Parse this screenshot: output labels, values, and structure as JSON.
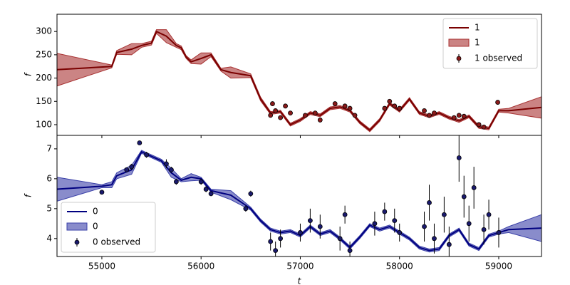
{
  "chart_data": [
    {
      "type": "line",
      "ylabel": "f",
      "legend": "upper right",
      "xlim": [
        54548,
        59431
      ],
      "xticks": [
        55000,
        56000,
        57000,
        58000,
        59000
      ],
      "show_xtick_labels": false,
      "ylim": [
        77,
        337
      ],
      "yticks": [
        100,
        150,
        200,
        250,
        300
      ],
      "line": {
        "name": "1",
        "color": "#7a0000",
        "x": [
          54548,
          55100,
          55150,
          55300,
          55400,
          55500,
          55550,
          55650,
          55750,
          55800,
          55850,
          55900,
          56000,
          56100,
          56200,
          56300,
          56500,
          56600,
          56700,
          56800,
          56900,
          57000,
          57100,
          57200,
          57300,
          57400,
          57500,
          57600,
          57700,
          57800,
          57900,
          58000,
          58100,
          58200,
          58300,
          58400,
          58500,
          58600,
          58700,
          58800,
          58900,
          59000,
          59100,
          59431
        ],
        "values": [
          218,
          225,
          255,
          262,
          270,
          275,
          300,
          290,
          270,
          265,
          245,
          235,
          242,
          250,
          218,
          212,
          205,
          155,
          125,
          128,
          100,
          110,
          125,
          120,
          135,
          138,
          130,
          105,
          88,
          110,
          145,
          130,
          155,
          125,
          118,
          125,
          115,
          108,
          118,
          95,
          92,
          130,
          130,
          137
        ]
      },
      "band": {
        "name": "1",
        "color": "#a83232",
        "lower": [
          183,
          222,
          251,
          250,
          266,
          271,
          296,
          276,
          266,
          261,
          242,
          231,
          230,
          246,
          215,
          200,
          201,
          151,
          122,
          125,
          97,
          107,
          122,
          117,
          132,
          135,
          127,
          102,
          85,
          107,
          142,
          127,
          152,
          122,
          115,
          122,
          112,
          105,
          115,
          92,
          89,
          127,
          125,
          114
        ],
        "upper": [
          253,
          228,
          259,
          274,
          274,
          279,
          304,
          304,
          274,
          269,
          248,
          239,
          254,
          254,
          221,
          224,
          209,
          159,
          128,
          131,
          103,
          113,
          128,
          123,
          138,
          141,
          133,
          108,
          91,
          113,
          148,
          133,
          158,
          128,
          121,
          128,
          118,
          111,
          121,
          98,
          95,
          133,
          135,
          160
        ]
      },
      "observed": {
        "name": "1 observed",
        "color": "#8b1a1a",
        "x": [
          56700,
          56720,
          56750,
          56800,
          56850,
          56900,
          57050,
          57150,
          57200,
          57350,
          57450,
          57500,
          57550,
          57850,
          57900,
          57950,
          58000,
          58250,
          58300,
          58350,
          58550,
          58600,
          58650,
          58800,
          58850,
          58990
        ],
        "values": [
          120,
          145,
          130,
          115,
          140,
          125,
          120,
          125,
          110,
          145,
          140,
          135,
          120,
          135,
          150,
          140,
          135,
          130,
          120,
          125,
          115,
          120,
          118,
          100,
          95,
          148
        ],
        "errors": [
          4,
          4,
          4,
          4,
          4,
          4,
          4,
          4,
          4,
          4,
          4,
          4,
          4,
          4,
          4,
          4,
          4,
          4,
          4,
          4,
          4,
          4,
          4,
          4,
          4,
          4
        ]
      }
    },
    {
      "type": "line",
      "ylabel": "f",
      "xlabel": "t",
      "legend": "lower left",
      "xlim": [
        54548,
        59431
      ],
      "xticks": [
        55000,
        56000,
        57000,
        58000,
        59000
      ],
      "show_xtick_labels": true,
      "ylim": [
        3.4,
        7.45
      ],
      "yticks": [
        4,
        5,
        6,
        7
      ],
      "line": {
        "name": "0",
        "color": "#000080",
        "x": [
          54548,
          55000,
          55100,
          55150,
          55300,
          55400,
          55600,
          55700,
          55800,
          55900,
          56000,
          56100,
          56300,
          56500,
          56600,
          56700,
          56800,
          56900,
          57000,
          57100,
          57200,
          57300,
          57400,
          57500,
          57600,
          57700,
          57800,
          57900,
          58000,
          58100,
          58200,
          58300,
          58400,
          58500,
          58600,
          58700,
          58800,
          58900,
          59000,
          59100,
          59431
        ],
        "values": [
          5.65,
          5.75,
          5.8,
          6.1,
          6.3,
          6.9,
          6.6,
          6.2,
          5.95,
          6.05,
          6.0,
          5.6,
          5.45,
          5.0,
          4.6,
          4.3,
          4.2,
          4.25,
          4.1,
          4.4,
          4.15,
          4.25,
          4.0,
          3.7,
          4.05,
          4.45,
          4.3,
          4.4,
          4.2,
          4.0,
          3.7,
          3.6,
          3.65,
          4.1,
          4.3,
          3.8,
          3.65,
          4.1,
          4.2,
          4.3,
          4.35
        ]
      },
      "band": {
        "name": "0",
        "color": "#3a40a8",
        "lower": [
          5.25,
          5.7,
          5.7,
          6.0,
          6.15,
          6.85,
          6.55,
          6.05,
          5.9,
          5.93,
          5.95,
          5.55,
          5.3,
          4.95,
          4.55,
          4.25,
          4.15,
          4.2,
          4.05,
          4.35,
          4.1,
          4.2,
          3.95,
          3.65,
          4.0,
          4.4,
          4.25,
          4.35,
          4.15,
          3.95,
          3.65,
          3.55,
          3.6,
          4.05,
          4.25,
          3.75,
          3.6,
          4.05,
          4.15,
          4.2,
          3.9
        ],
        "upper": [
          6.05,
          5.8,
          5.9,
          6.2,
          6.45,
          6.95,
          6.65,
          6.35,
          6.0,
          6.17,
          6.05,
          5.65,
          5.6,
          5.05,
          4.65,
          4.35,
          4.25,
          4.3,
          4.15,
          4.45,
          4.2,
          4.3,
          4.05,
          3.75,
          4.1,
          4.5,
          4.35,
          4.45,
          4.25,
          4.05,
          3.75,
          3.65,
          3.7,
          4.15,
          4.35,
          3.85,
          3.7,
          4.15,
          4.25,
          4.4,
          4.8
        ]
      },
      "observed": {
        "name": "0 observed",
        "color": "#1a1a6e",
        "x": [
          55000,
          55250,
          55300,
          55380,
          55450,
          55650,
          55700,
          55750,
          56000,
          56050,
          56100,
          56450,
          56500,
          56700,
          56750,
          56800,
          57000,
          57100,
          57200,
          57400,
          57450,
          57500,
          57750,
          57850,
          57950,
          58000,
          58250,
          58300,
          58350,
          58450,
          58500,
          58600,
          58650,
          58700,
          58750,
          58850,
          58900,
          59000
        ],
        "values": [
          5.55,
          6.3,
          6.4,
          7.2,
          6.8,
          6.5,
          6.3,
          5.9,
          5.9,
          5.65,
          5.5,
          5.0,
          5.5,
          3.9,
          3.6,
          4.0,
          4.2,
          4.6,
          4.4,
          4.0,
          4.8,
          3.6,
          4.5,
          4.9,
          4.6,
          4.2,
          4.4,
          5.2,
          4.0,
          4.8,
          3.8,
          6.7,
          5.4,
          4.5,
          5.7,
          4.3,
          4.8,
          4.2
        ],
        "errors": [
          0.05,
          0.08,
          0.1,
          0.05,
          0.1,
          0.15,
          0.1,
          0.1,
          0.1,
          0.1,
          0.08,
          0.1,
          0.1,
          0.3,
          0.3,
          0.3,
          0.3,
          0.4,
          0.4,
          0.4,
          0.3,
          0.3,
          0.4,
          0.3,
          0.4,
          0.3,
          0.5,
          0.6,
          0.5,
          0.6,
          0.6,
          0.8,
          0.7,
          0.6,
          0.7,
          0.5,
          0.5,
          0.5
        ]
      }
    }
  ]
}
